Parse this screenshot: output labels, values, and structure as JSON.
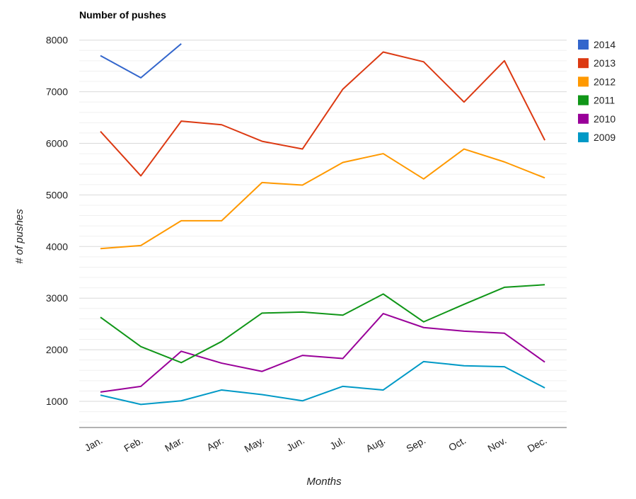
{
  "chart_data": {
    "type": "line",
    "title": "Number of pushes",
    "xlabel": "Months",
    "ylabel": "# of pushes",
    "categories": [
      "Jan.",
      "Feb.",
      "Mar.",
      "Apr.",
      "May.",
      "Jun.",
      "Jul.",
      "Aug.",
      "Sep.",
      "Oct.",
      "Nov.",
      "Dec."
    ],
    "ylim": [
      500,
      8000
    ],
    "yticks": [
      "1000",
      "2000",
      "3000",
      "4000",
      "5000",
      "6000",
      "7000",
      "8000"
    ],
    "grid": true,
    "legend_position": "right",
    "series": [
      {
        "name": "2014",
        "color": "#3366cc",
        "values": [
          7700,
          7270,
          7930,
          null,
          null,
          null,
          null,
          null,
          null,
          null,
          null,
          null
        ]
      },
      {
        "name": "2013",
        "color": "#dc3912",
        "values": [
          6230,
          5370,
          6430,
          6360,
          6040,
          5890,
          7050,
          7770,
          7580,
          6800,
          7600,
          6060
        ]
      },
      {
        "name": "2012",
        "color": "#ff9900",
        "values": [
          3960,
          4020,
          4500,
          4500,
          5240,
          5190,
          5630,
          5800,
          5310,
          5890,
          5640,
          5330
        ]
      },
      {
        "name": "2011",
        "color": "#109618",
        "values": [
          2630,
          2060,
          1750,
          2160,
          2710,
          2730,
          2670,
          3080,
          2540,
          2880,
          3210,
          3260
        ]
      },
      {
        "name": "2010",
        "color": "#990099",
        "values": [
          1180,
          1290,
          1970,
          1740,
          1580,
          1890,
          1830,
          2700,
          2430,
          2360,
          2320,
          1760
        ]
      },
      {
        "name": "2009",
        "color": "#0099c6",
        "values": [
          1120,
          940,
          1010,
          1220,
          1130,
          1010,
          1290,
          1220,
          1770,
          1690,
          1670,
          1260
        ]
      }
    ]
  }
}
